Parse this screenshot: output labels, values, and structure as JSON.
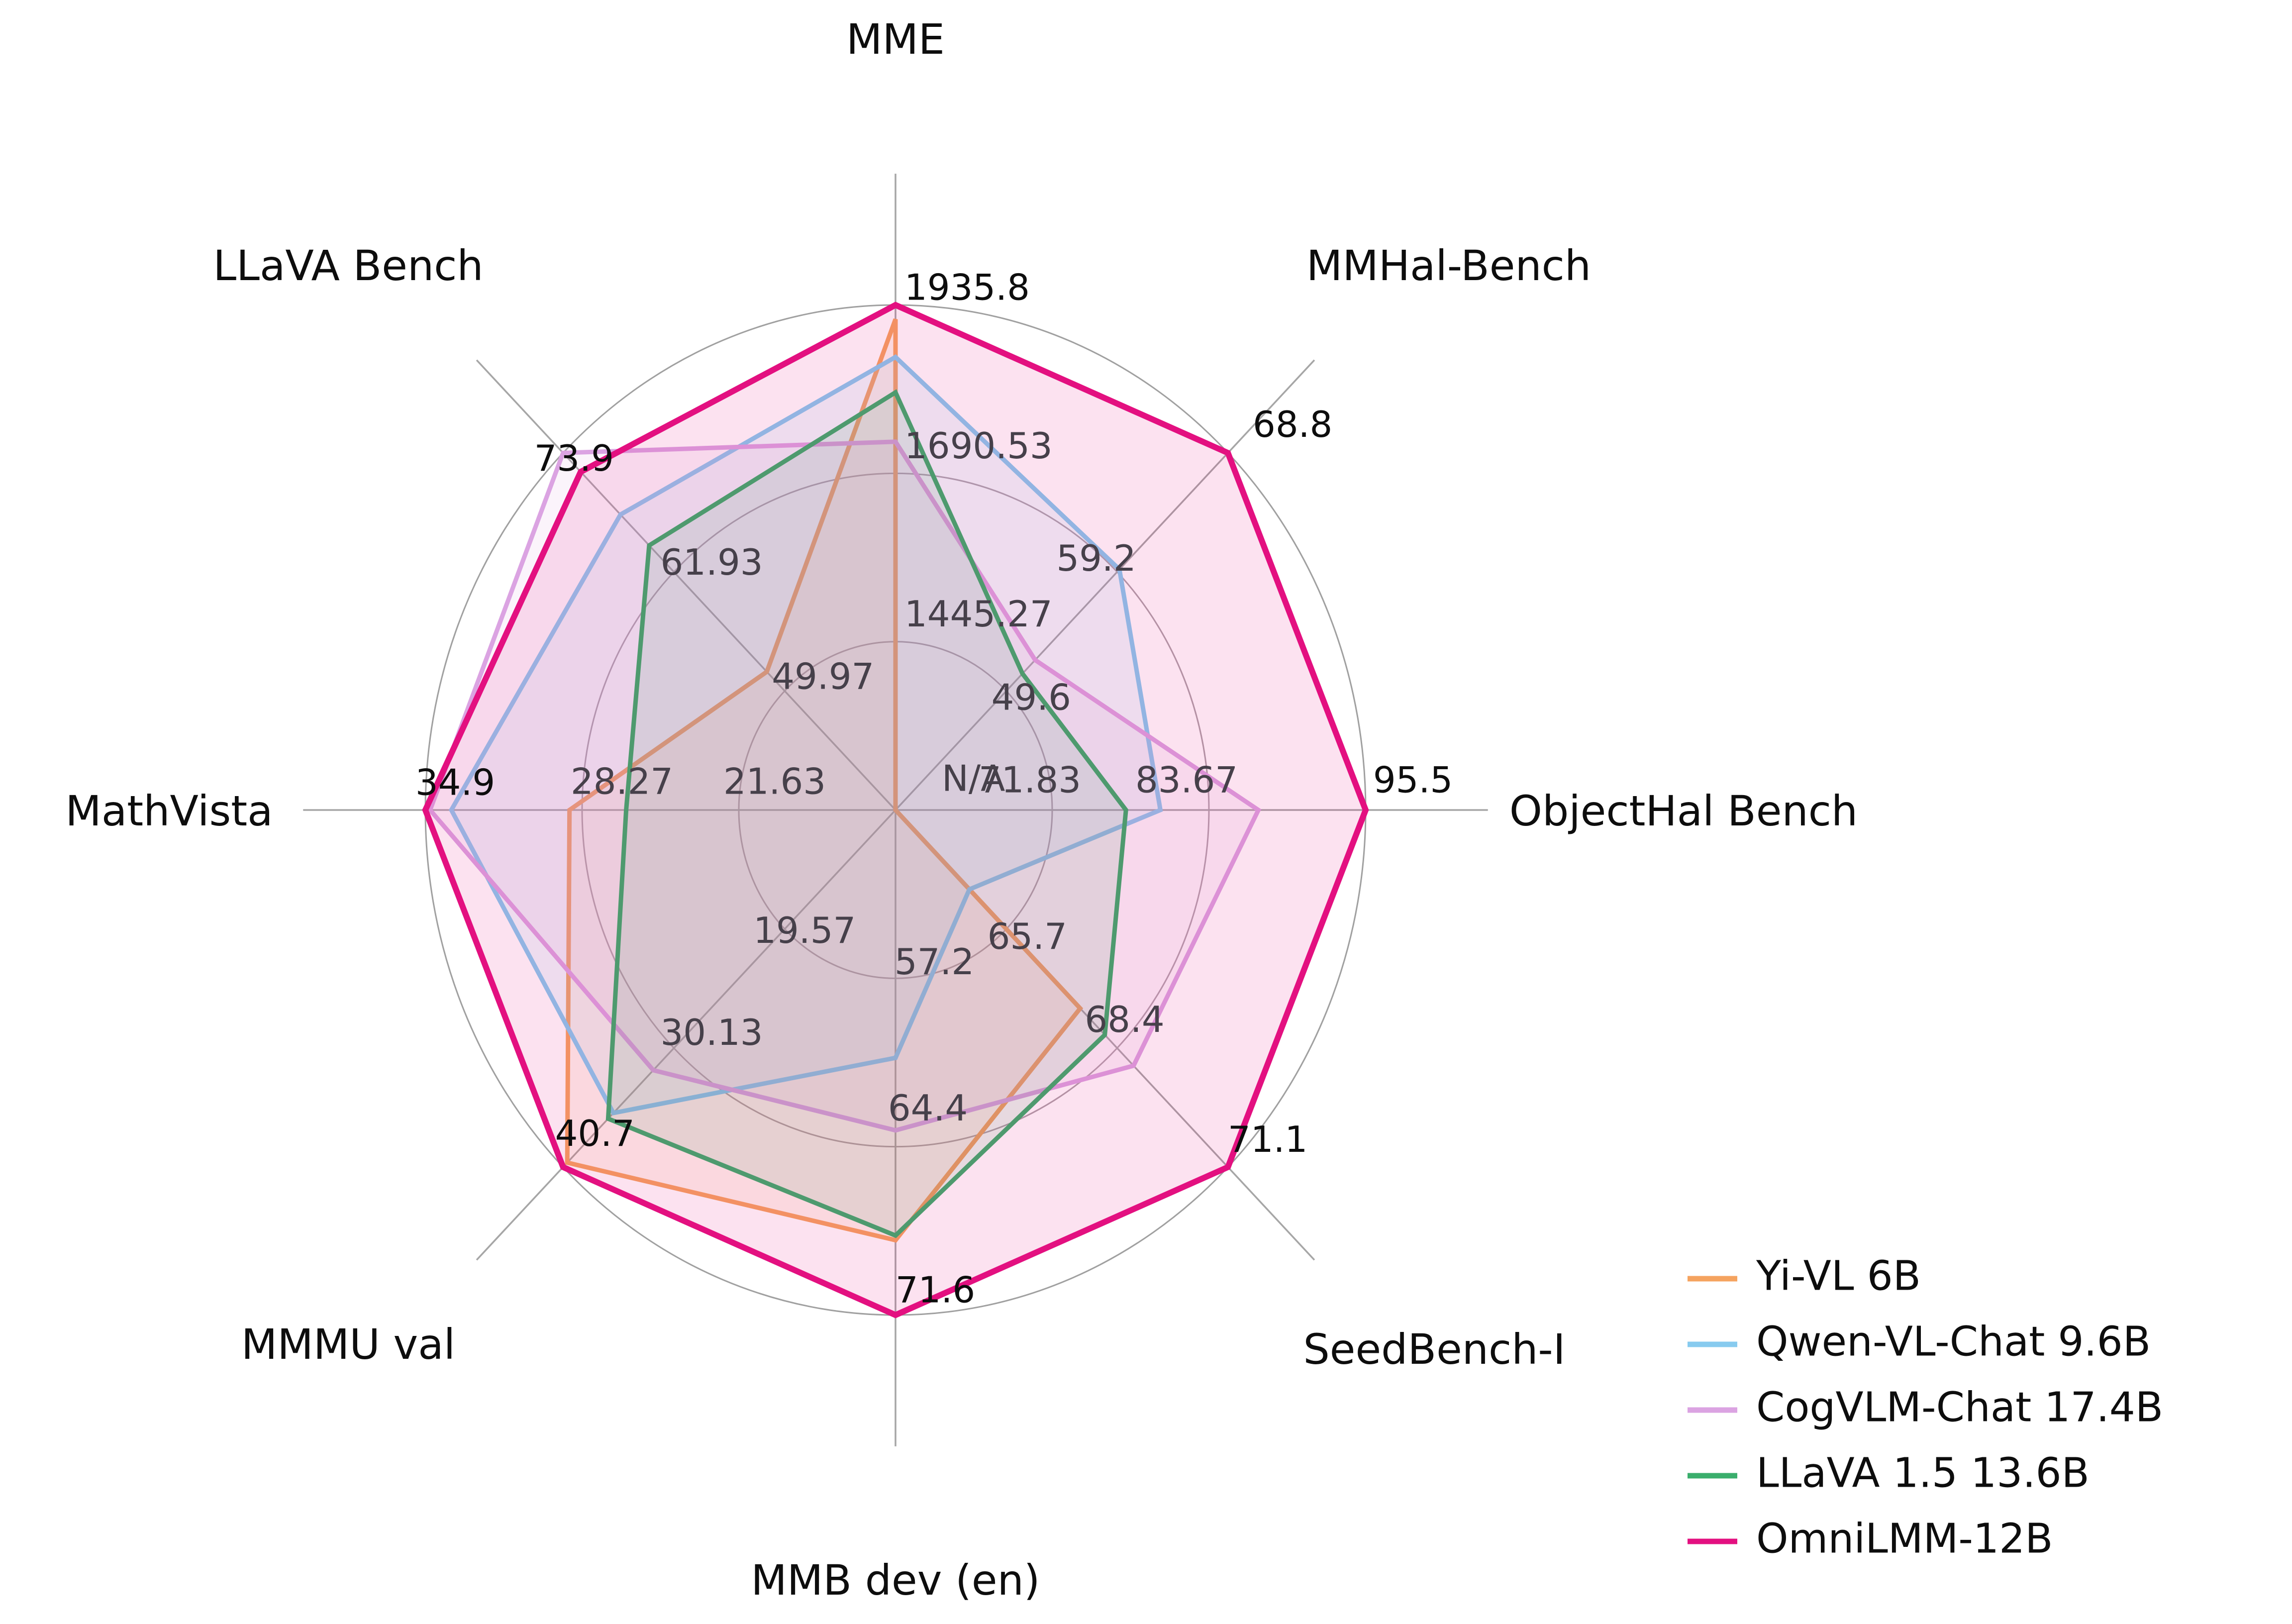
{
  "figure": {
    "background": "#ffffff",
    "center_label": "N/A"
  },
  "chart_data": {
    "type": "radar",
    "grid_rings": 3,
    "legend_position": "lower right",
    "axes": [
      {
        "label": "MME",
        "min": 1200,
        "max": 1935.8,
        "ring_labels": [
          "1445.27",
          "1690.53",
          "1935.8"
        ]
      },
      {
        "label": "MMHal-Bench",
        "min": 40,
        "max": 68.8,
        "ring_labels": [
          "49.6",
          "59.2",
          "68.8"
        ]
      },
      {
        "label": "ObjectHal Bench",
        "min": 60,
        "max": 95.5,
        "ring_labels": [
          "71.83",
          "83.67",
          "95.5"
        ]
      },
      {
        "label": "SeedBench-I",
        "min": 63,
        "max": 71.1,
        "ring_labels": [
          "65.7",
          "68.4",
          "71.1"
        ]
      },
      {
        "label": "MMB dev (en)",
        "min": 50,
        "max": 71.6,
        "ring_labels": [
          "57.2",
          "64.4",
          "71.6"
        ]
      },
      {
        "label": "MMMU val",
        "min": 9,
        "max": 40.7,
        "ring_labels": [
          "19.57",
          "30.13",
          "40.7"
        ]
      },
      {
        "label": "MathVista",
        "min": 15,
        "max": 34.9,
        "ring_labels": [
          "21.63",
          "28.27",
          "34.9"
        ]
      },
      {
        "label": "LLaVA Bench",
        "min": 38,
        "max": 73.9,
        "ring_labels": [
          "49.97",
          "61.93",
          "73.9"
        ]
      }
    ],
    "series": [
      {
        "name": "Yi-VL 6B",
        "color": "#F5A35F",
        "values": [
          1915.1,
          null,
          null,
          67.5,
          68.4,
          40.3,
          28.8,
          51.9
        ]
      },
      {
        "name": "Qwen-VL-Chat 9.6B",
        "color": "#87CBEF",
        "values": [
          1860,
          59.4,
          80.0,
          64.8,
          60.6,
          35.9,
          33.8,
          67.7
        ]
      },
      {
        "name": "CogVLM-Chat 17.4B",
        "color": "#DBA3E2",
        "values": [
          1736.6,
          52.1,
          87.4,
          68.8,
          63.7,
          32.1,
          34.7,
          73.9
        ]
      },
      {
        "name": "LLaVA 1.5 13.6B",
        "color": "#3AAE6C",
        "values": [
          1808.4,
          51.0,
          77.4,
          68.1,
          68.2,
          36.4,
          26.4,
          64.6
        ]
      },
      {
        "name": "OmniLMM-12B",
        "color": "#E31080",
        "values": [
          1935.8,
          68.8,
          95.5,
          71.1,
          71.6,
          40.7,
          34.9,
          72.0
        ]
      }
    ],
    "na_label": "N/A"
  },
  "legend": {
    "items": [
      {
        "label": "Yi-VL 6B",
        "color": "#F5A35F"
      },
      {
        "label": "Qwen-VL-Chat 9.6B",
        "color": "#87CBEF"
      },
      {
        "label": "CogVLM-Chat 17.4B",
        "color": "#DBA3E2"
      },
      {
        "label": "LLaVA 1.5 13.6B",
        "color": "#3AAE6C"
      },
      {
        "label": "OmniLMM-12B",
        "color": "#E31080"
      }
    ]
  }
}
